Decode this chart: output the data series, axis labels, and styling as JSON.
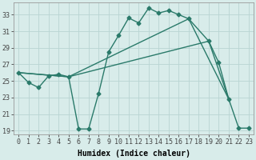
{
  "background_color": "#d8ecea",
  "grid_color": "#b8d5d3",
  "line_color": "#2a7a6a",
  "markersize": 2.5,
  "linewidth": 1.0,
  "xlabel": "Humidex (Indice chaleur)",
  "xlabel_fontsize": 7,
  "tick_fontsize": 6,
  "ylim": [
    18.5,
    34.5
  ],
  "xlim": [
    -0.5,
    23.5
  ],
  "yticks": [
    19,
    21,
    23,
    25,
    27,
    29,
    31,
    33
  ],
  "xticks": [
    0,
    1,
    2,
    3,
    4,
    5,
    6,
    7,
    8,
    9,
    10,
    11,
    12,
    13,
    14,
    15,
    16,
    17,
    18,
    19,
    20,
    21,
    22,
    23
  ],
  "series1_x": [
    0,
    1,
    2,
    3,
    4,
    5,
    6,
    7,
    8,
    9,
    10,
    11,
    12,
    13,
    14,
    15,
    16,
    17,
    19,
    20,
    21,
    22,
    23
  ],
  "series1_y": [
    26.0,
    24.8,
    24.2,
    25.6,
    25.8,
    25.5,
    19.2,
    19.2,
    23.5,
    28.5,
    30.5,
    32.6,
    32.0,
    33.8,
    33.2,
    33.5,
    33.0,
    32.5,
    29.8,
    27.2,
    22.8,
    19.3,
    19.3
  ],
  "series2_x": [
    0,
    5,
    17,
    21
  ],
  "series2_y": [
    26.0,
    25.5,
    32.5,
    22.8
  ],
  "series3_x": [
    0,
    5,
    19,
    21
  ],
  "series3_y": [
    26.0,
    25.5,
    29.8,
    22.8
  ]
}
